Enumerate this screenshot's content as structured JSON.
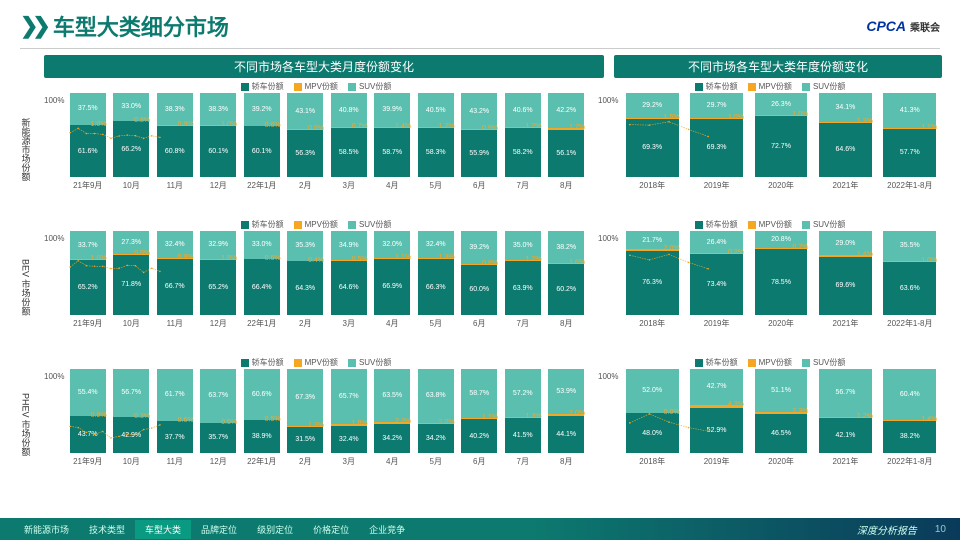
{
  "header": {
    "title": "车型大类细分市场",
    "logo": "CPCA",
    "logo_sub": "乘联会"
  },
  "panel_titles": {
    "left": "不同市场各车型大类月度份额变化",
    "right": "不同市场各车型大类年度份额变化"
  },
  "legend": {
    "sedan": "轿车份额",
    "mpv": "MPV份额",
    "suv": "SUV份额"
  },
  "colors": {
    "sedan": "#0d7a6f",
    "suv": "#5bbfb0",
    "mpv": "#f5a623",
    "mpv_line": "#f5a623",
    "bg": "#ffffff",
    "title": "#0d7a6f"
  },
  "x_monthly": [
    "21年9月",
    "10月",
    "11月",
    "12月",
    "22年1月",
    "2月",
    "3月",
    "4月",
    "5月",
    "6月",
    "7月",
    "8月"
  ],
  "x_yearly": [
    "2018年",
    "2019年",
    "2020年",
    "2021年",
    "2022年1-8月"
  ],
  "rows": [
    {
      "label": "新能源市场份额",
      "monthly": {
        "suv": [
          37.5,
          33.0,
          38.3,
          38.3,
          39.2,
          43.1,
          40.8,
          39.9,
          40.5,
          43.2,
          40.6,
          42.2
        ],
        "mpv": [
          1.0,
          0.8,
          0.9,
          1.0,
          0.6,
          0.6,
          0.7,
          1.4,
          1.2,
          0.9,
          1.2,
          1.7
        ],
        "sedan": [
          61.6,
          66.2,
          60.8,
          60.1,
          60.1,
          56.3,
          58.5,
          58.7,
          58.3,
          55.9,
          58.2,
          56.1
        ]
      },
      "yearly": {
        "suv": [
          29.2,
          29.7,
          26.3,
          34.1,
          41.3
        ],
        "mpv": [
          1.5,
          1.0,
          1.0,
          1.3,
          1.1
        ],
        "sedan": [
          69.3,
          69.3,
          72.7,
          64.6,
          57.7
        ]
      }
    },
    {
      "label": "BEV 市场份额",
      "monthly": {
        "suv": [
          33.7,
          27.3,
          32.4,
          32.9,
          33.0,
          35.3,
          34.9,
          32.0,
          32.4,
          39.2,
          35.0,
          38.2
        ],
        "mpv": [
          1.0,
          0.9,
          0.9,
          1.8,
          0.6,
          0.4,
          0.5,
          1.1,
          1.3,
          0.8,
          1.2,
          1.6
        ],
        "sedan": [
          65.2,
          71.8,
          66.7,
          65.2,
          66.4,
          64.3,
          64.6,
          66.9,
          66.3,
          60.0,
          63.9,
          60.2
        ]
      },
      "yearly": {
        "suv": [
          21.7,
          26.4,
          20.8,
          29.0,
          35.5
        ],
        "mpv": [
          2.0,
          0.2,
          0.7,
          1.4,
          1.0
        ],
        "sedan": [
          76.3,
          73.4,
          78.5,
          69.6,
          63.6
        ]
      }
    },
    {
      "label": "PHEV 市场份额",
      "monthly": {
        "suv": [
          55.4,
          56.7,
          61.7,
          63.7,
          60.6,
          67.3,
          65.7,
          63.5,
          63.8,
          58.7,
          57.2,
          53.9
        ],
        "mpv": [
          0.9,
          0.3,
          0.6,
          0.5,
          0.5,
          1.3,
          1.8,
          2.3,
          2.0,
          1.1,
          1.3,
          2.0
        ],
        "sedan": [
          43.7,
          42.9,
          37.7,
          35.7,
          38.9,
          31.5,
          32.4,
          34.2,
          34.2,
          40.2,
          41.5,
          44.1
        ]
      },
      "yearly": {
        "suv": [
          52.0,
          42.7,
          51.1,
          56.7,
          60.4
        ],
        "mpv": [
          0.0,
          4.3,
          2.3,
          1.2,
          1.4
        ],
        "sedan": [
          48.0,
          52.9,
          46.5,
          42.1,
          38.2
        ]
      }
    }
  ],
  "footer": {
    "tabs": [
      "新能源市场",
      "技术类型",
      "车型大类",
      "品牌定位",
      "级别定位",
      "价格定位",
      "企业竞争"
    ],
    "active_tab": 2,
    "right_text": "深度分析报告",
    "page": "10"
  }
}
